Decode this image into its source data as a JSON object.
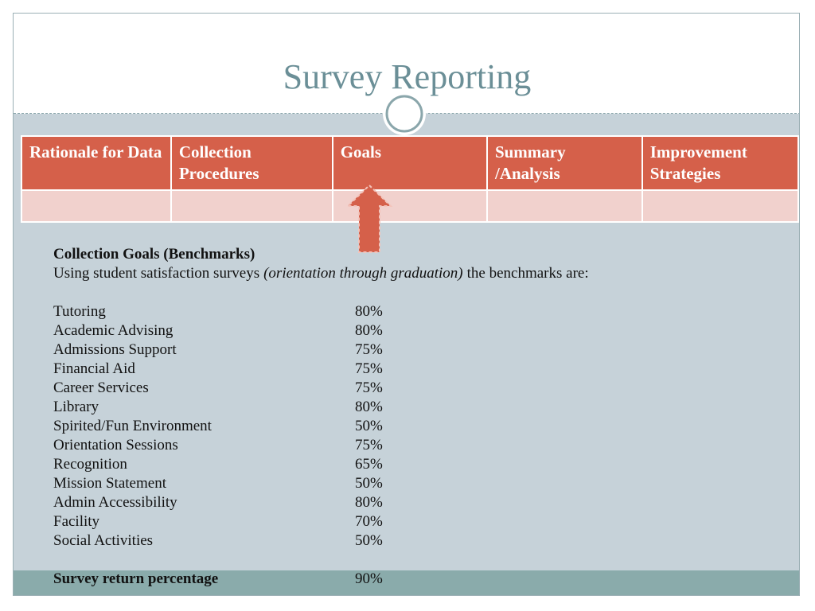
{
  "title": "Survey Reporting",
  "table": {
    "header": [
      "Rationale for Data",
      "Collection Procedures",
      "Goals",
      "Summary /Analysis",
      "Improvement Strategies"
    ]
  },
  "intro": {
    "heading": "Collection Goals (Benchmarks)",
    "line": [
      "Using student satisfaction surveys",
      "(orientation through graduation)",
      "the benchmarks are:"
    ]
  },
  "benchmarks": [
    {
      "label": "Tutoring",
      "value": "80%"
    },
    {
      "label": "Academic Advising",
      "value": "80%"
    },
    {
      "label": "Admissions Support",
      "value": "75%"
    },
    {
      "label": "Financial Aid",
      "value": "75%"
    },
    {
      "label": "Career Services",
      "value": "75%"
    },
    {
      "label": "Library",
      "value": "80%"
    },
    {
      "label": "Spirited/Fun Environment",
      "value": "50%"
    },
    {
      "label": "Orientation Sessions",
      "value": "75%"
    },
    {
      "label": "Recognition",
      "value": "65%"
    },
    {
      "label": "Mission Statement",
      "value": "50%"
    },
    {
      "label": "Admin Accessibility",
      "value": "80%"
    },
    {
      "label": "Facility",
      "value": "70%"
    },
    {
      "label": "Social Activities",
      "value": "50%"
    }
  ],
  "return_rate": {
    "label": "Survey return percentage",
    "value": "90%"
  }
}
